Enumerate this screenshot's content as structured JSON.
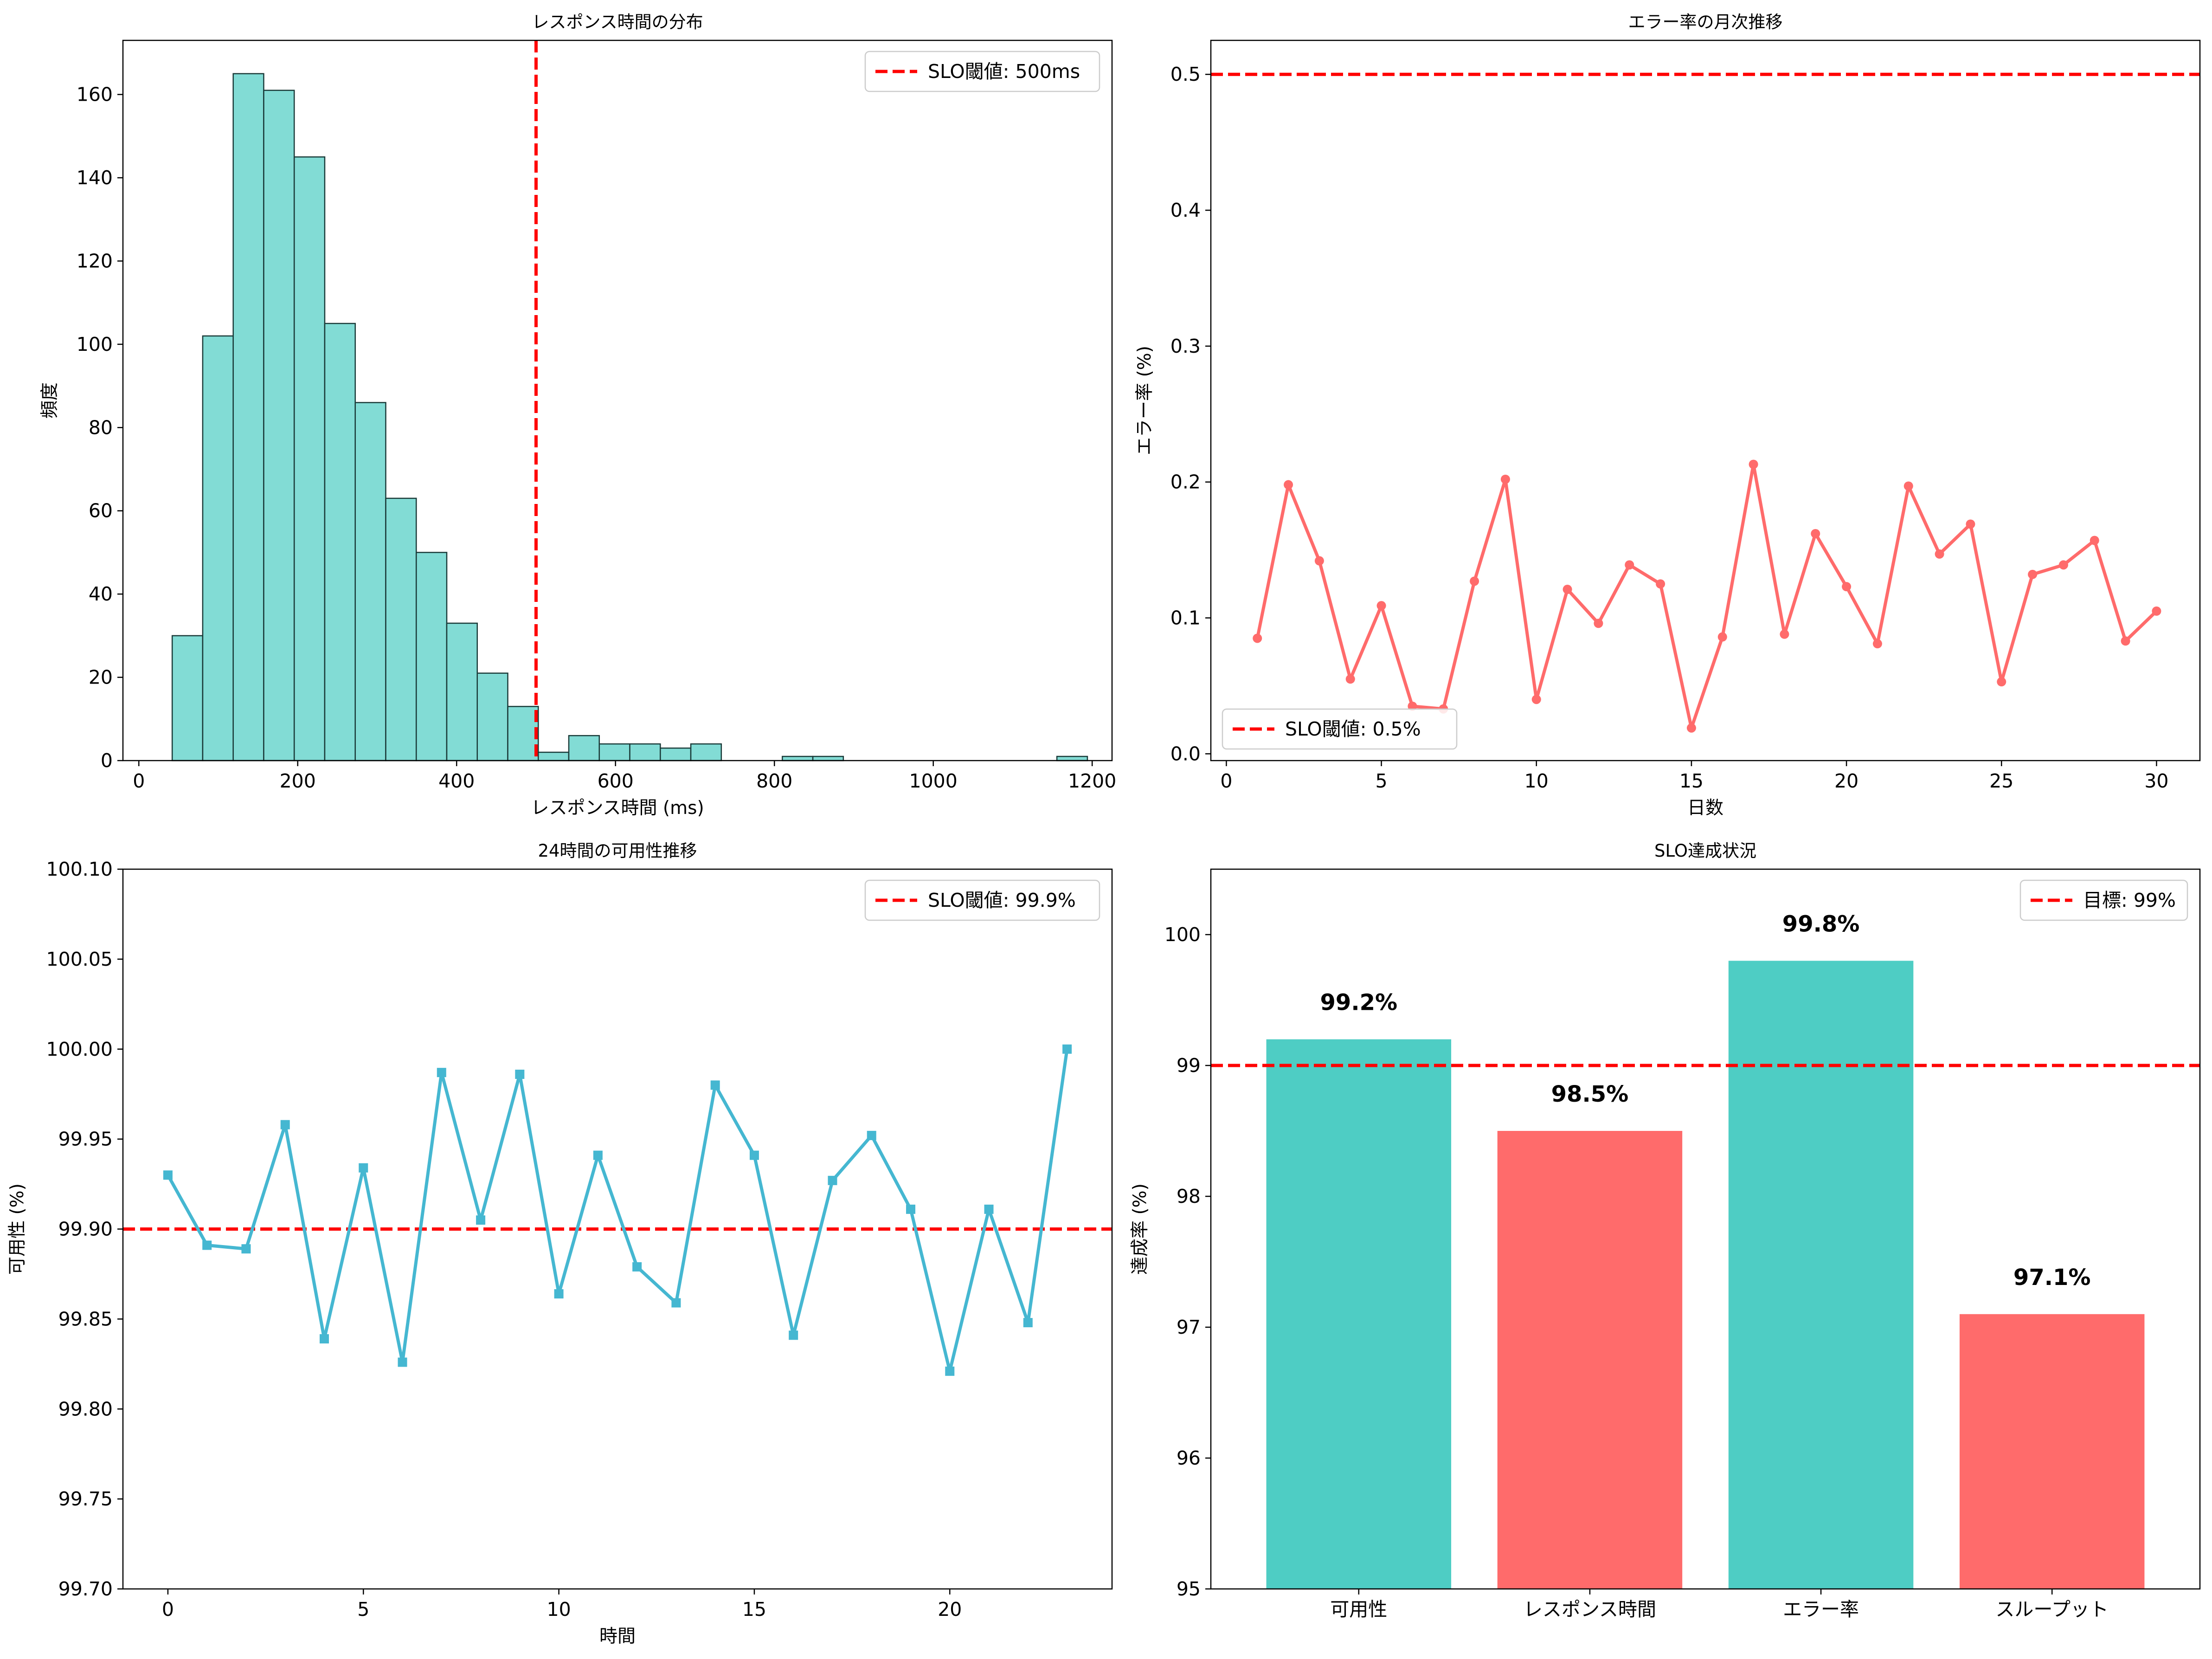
{
  "chart_data": [
    {
      "type": "bar",
      "subtype": "histogram",
      "title": "レスポンス時間の分布",
      "xlabel": "レスポンス時間 (ms)",
      "ylabel": "頻度",
      "xlim": [
        -20,
        1225
      ],
      "ylim": [
        0,
        173
      ],
      "xticks": [
        0,
        200,
        400,
        600,
        800,
        1000,
        1200
      ],
      "yticks": [
        0,
        20,
        40,
        60,
        80,
        100,
        120,
        140,
        160
      ],
      "bin_start": 42,
      "bin_width": 38.4,
      "counts": [
        30,
        102,
        165,
        161,
        145,
        105,
        86,
        63,
        50,
        33,
        21,
        13,
        2,
        6,
        4,
        4,
        3,
        4,
        0,
        0,
        1,
        1,
        0,
        0,
        0,
        0,
        0,
        0,
        0,
        1
      ],
      "color": "#82DCD5",
      "edge_color": "#1a3a38",
      "threshold": {
        "value": 500,
        "axis": "x",
        "label": "SLO閾値: 500ms",
        "color": "#ff0000"
      },
      "legend": {
        "position": "top-right"
      }
    },
    {
      "type": "line",
      "title": "エラー率の月次推移",
      "xlabel": "日数",
      "ylabel": "エラー率 (%)",
      "xlim": [
        -0.5,
        31.4
      ],
      "ylim": [
        -0.005,
        0.525
      ],
      "xticks": [
        0,
        5,
        10,
        15,
        20,
        25,
        30
      ],
      "yticks": [
        "0.0",
        "0.1",
        "0.2",
        "0.3",
        "0.4",
        "0.5"
      ],
      "x": [
        1,
        2,
        3,
        4,
        5,
        6,
        7,
        8,
        9,
        10,
        11,
        12,
        13,
        14,
        15,
        16,
        17,
        18,
        19,
        20,
        21,
        22,
        23,
        24,
        25,
        26,
        27,
        28,
        29,
        30
      ],
      "values": [
        0.085,
        0.198,
        0.142,
        0.055,
        0.109,
        0.035,
        0.033,
        0.127,
        0.202,
        0.04,
        0.121,
        0.096,
        0.139,
        0.125,
        0.019,
        0.086,
        0.213,
        0.088,
        0.162,
        0.123,
        0.081,
        0.197,
        0.147,
        0.169,
        0.053,
        0.132,
        0.139,
        0.157,
        0.083,
        0.105
      ],
      "color": "#FF6B6B",
      "marker": "circle",
      "threshold": {
        "value": 0.5,
        "axis": "y",
        "label": "SLO閾値: 0.5%",
        "color": "#ff0000"
      },
      "legend": {
        "position": "bottom-left"
      }
    },
    {
      "type": "line",
      "title": "24時間の可用性推移",
      "xlabel": "時間",
      "ylabel": "可用性 (%)",
      "xlim": [
        -1.15,
        24.15
      ],
      "ylim": [
        99.7,
        100.1
      ],
      "xticks": [
        0,
        5,
        10,
        15,
        20
      ],
      "yticks": [
        "99.70",
        "99.75",
        "99.80",
        "99.85",
        "99.90",
        "99.95",
        "100.00",
        "100.05",
        "100.10"
      ],
      "x": [
        0,
        1,
        2,
        3,
        4,
        5,
        6,
        7,
        8,
        9,
        10,
        11,
        12,
        13,
        14,
        15,
        16,
        17,
        18,
        19,
        20,
        21,
        22,
        23
      ],
      "values": [
        99.93,
        99.891,
        99.889,
        99.958,
        99.839,
        99.934,
        99.826,
        99.987,
        99.905,
        99.986,
        99.864,
        99.941,
        99.879,
        99.859,
        99.98,
        99.941,
        99.841,
        99.927,
        99.952,
        99.911,
        99.821,
        99.911,
        99.848,
        100.0
      ],
      "color": "#45B7D1",
      "marker": "square",
      "threshold": {
        "value": 99.9,
        "axis": "y",
        "label": "SLO閾値: 99.9%",
        "color": "#ff0000"
      },
      "legend": {
        "position": "top-right"
      }
    },
    {
      "type": "bar",
      "title": "SLO達成状況",
      "xlabel": "",
      "ylabel": "達成率 (%)",
      "ylim": [
        95,
        100.5
      ],
      "yticks": [
        95,
        96,
        97,
        98,
        99,
        100
      ],
      "categories": [
        "可用性",
        "レスポンス時間",
        "エラー率",
        "スループット"
      ],
      "values": [
        99.2,
        98.5,
        99.8,
        97.1
      ],
      "value_labels": [
        "99.2%",
        "98.5%",
        "99.8%",
        "97.1%"
      ],
      "colors": [
        "#4ECDC4",
        "#FF6B6B",
        "#4ECDC4",
        "#FF6B6B"
      ],
      "threshold": {
        "value": 99,
        "axis": "y",
        "label": "目標: 99%",
        "color": "#ff0000"
      },
      "legend": {
        "position": "top-right"
      }
    }
  ]
}
